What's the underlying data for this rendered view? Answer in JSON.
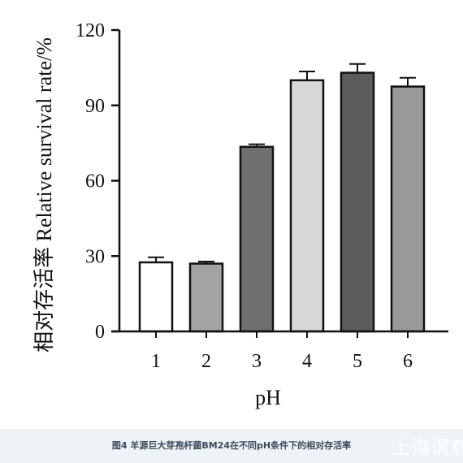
{
  "chart_data": {
    "type": "bar",
    "categories": [
      "1",
      "2",
      "3",
      "4",
      "5",
      "6"
    ],
    "values": [
      27.5,
      27,
      73.5,
      100,
      103,
      97.5
    ],
    "errors": [
      2,
      0.8,
      1,
      3.5,
      3.5,
      3.5
    ],
    "bar_colors": [
      "#ffffff",
      "#a3a3a3",
      "#6f6f6f",
      "#d8d8d8",
      "#5c5c5c",
      "#9a9a9a"
    ],
    "xlabel": "pH",
    "ylabel": "相对存活率  Relative survival rate/%",
    "ylim": [
      0,
      120
    ],
    "yticks": [
      "0",
      "30",
      "60",
      "90",
      "120"
    ],
    "ytick_values": [
      0,
      30,
      60,
      90,
      120
    ],
    "grid": false,
    "legend": "none"
  },
  "caption": "图4 羊源巨大芽孢杆菌BM24在不同pH条件下的相对存活率",
  "watermark": "上海谓载"
}
